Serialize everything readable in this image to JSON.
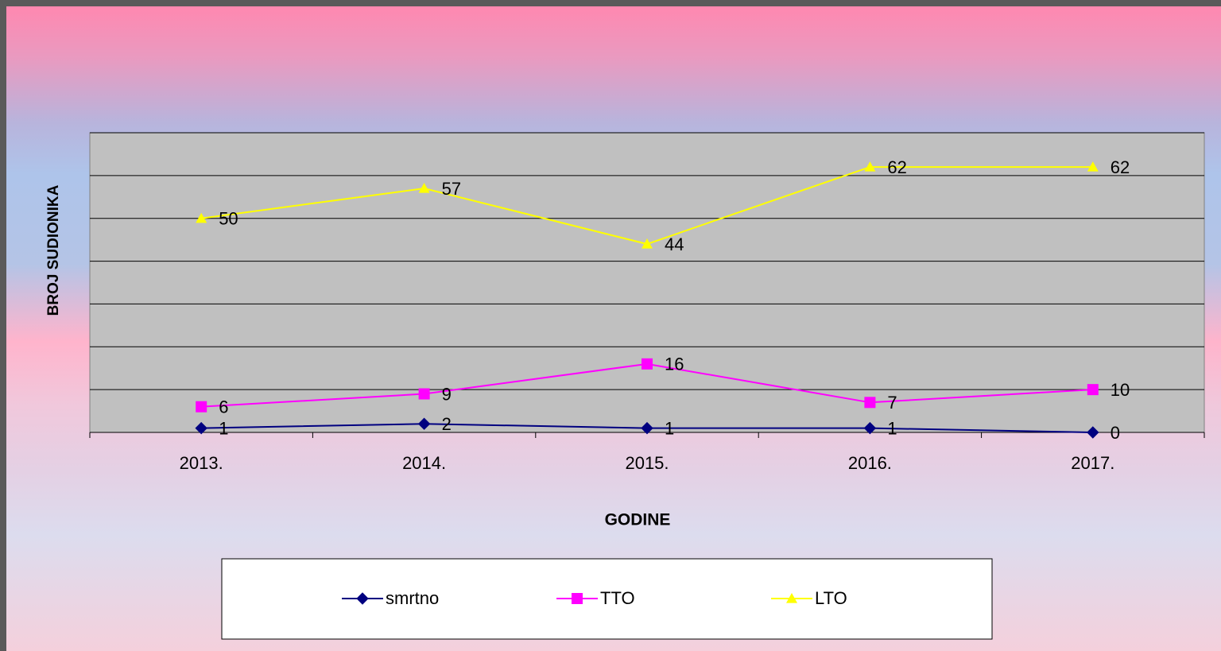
{
  "chart_data": {
    "type": "line",
    "x_label": "GODINE",
    "y_label": "BROJ SUDIONIKA",
    "categories": [
      "2013.",
      "2014.",
      "2015.",
      "2016.",
      "2017."
    ],
    "series": [
      {
        "name": "smrtno",
        "color": "#000080",
        "marker": "diamond",
        "values": [
          1,
          2,
          1,
          1,
          0
        ]
      },
      {
        "name": "TTO",
        "color": "#ff00ff",
        "marker": "square",
        "values": [
          6,
          9,
          16,
          7,
          10
        ]
      },
      {
        "name": "LTO",
        "color": "#ffff00",
        "marker": "triangle",
        "values": [
          50,
          57,
          44,
          62,
          62
        ]
      }
    ],
    "ylim": [
      0,
      70
    ],
    "yticks": [
      0,
      10,
      20,
      30,
      40,
      50,
      60,
      70
    ],
    "grid": true,
    "legend": "bottom"
  }
}
